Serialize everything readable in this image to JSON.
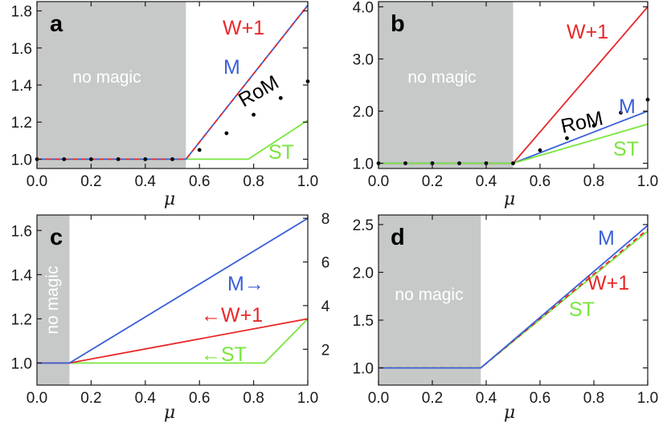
{
  "figure": {
    "xlabel": "μ",
    "region_label": "no magic"
  },
  "colors": {
    "W+1": "#e8292a",
    "M": "#3a5fd8",
    "ST": "#78e63c",
    "RoM": "#000000",
    "shade": "#c7c9c8",
    "axis": "#1a1a1a"
  },
  "chart_data": [
    {
      "panel": "a",
      "type": "line",
      "xlabel": "μ",
      "xlim": [
        0.0,
        1.0
      ],
      "ylim": [
        0.95,
        1.85
      ],
      "xticks": [
        0.0,
        0.2,
        0.4,
        0.6,
        0.8,
        1.0
      ],
      "xtick_labels": [
        "0.0",
        "0.2",
        "0.4",
        "0.6",
        "0.8",
        "1.0"
      ],
      "yticks": [
        1.0,
        1.2,
        1.4,
        1.6,
        1.8
      ],
      "ytick_labels": [
        "1.0",
        "1.2",
        "1.4",
        "1.6",
        "1.8"
      ],
      "shaded_region": {
        "x": [
          0.0,
          0.55
        ],
        "label": "no magic"
      },
      "series": [
        {
          "name": "ST",
          "label": "ST",
          "color": "#78e63c",
          "dash": false,
          "x": [
            0.0,
            0.78,
            1.0
          ],
          "y": [
            1.0,
            1.0,
            1.21
          ]
        },
        {
          "name": "M",
          "label": "M",
          "color": "#3a5fd8",
          "dash": false,
          "x": [
            0.0,
            0.55,
            1.0
          ],
          "y": [
            1.0,
            1.0,
            1.83
          ]
        },
        {
          "name": "W+1",
          "label": "W+1",
          "color": "#e8292a",
          "dash": true,
          "x": [
            0.0,
            0.55,
            1.0
          ],
          "y": [
            1.0,
            1.0,
            1.83
          ]
        }
      ],
      "points": {
        "name": "RoM",
        "label": "RoM",
        "x": [
          0.0,
          0.1,
          0.2,
          0.3,
          0.4,
          0.5,
          0.6,
          0.7,
          0.8,
          0.9,
          1.0
        ],
        "y": [
          1.0,
          1.0,
          1.0,
          1.0,
          1.0,
          1.0,
          1.05,
          1.14,
          1.24,
          1.33,
          1.42
        ]
      }
    },
    {
      "panel": "b",
      "type": "line",
      "xlabel": "μ",
      "xlim": [
        0.0,
        1.0
      ],
      "ylim": [
        0.9,
        4.1
      ],
      "xticks": [
        0.0,
        0.2,
        0.4,
        0.6,
        0.8,
        1.0
      ],
      "xtick_labels": [
        "0.0",
        "0.2",
        "0.4",
        "0.6",
        "0.8",
        "1.0"
      ],
      "yticks": [
        1.0,
        2.0,
        3.0,
        4.0
      ],
      "ytick_labels": [
        "1.0",
        "2.0",
        "3.0",
        "4.0"
      ],
      "shaded_region": {
        "x": [
          0.0,
          0.5
        ],
        "label": "no magic"
      },
      "series": [
        {
          "name": "W+1",
          "label": "W+1",
          "color": "#e8292a",
          "dash": false,
          "x": [
            0.0,
            0.5,
            1.0
          ],
          "y": [
            1.0,
            1.0,
            4.0
          ]
        },
        {
          "name": "M",
          "label": "M",
          "color": "#3a5fd8",
          "dash": false,
          "x": [
            0.0,
            0.5,
            1.0
          ],
          "y": [
            1.0,
            1.0,
            2.0
          ]
        },
        {
          "name": "ST",
          "label": "ST",
          "color": "#78e63c",
          "dash": false,
          "x": [
            0.0,
            0.5,
            1.0
          ],
          "y": [
            1.0,
            1.0,
            1.75
          ]
        }
      ],
      "points": {
        "name": "RoM",
        "label": "RoM",
        "x": [
          0.0,
          0.1,
          0.2,
          0.3,
          0.4,
          0.5,
          0.6,
          0.7,
          0.8,
          0.9,
          1.0
        ],
        "y": [
          1.0,
          1.0,
          1.0,
          1.0,
          1.0,
          1.0,
          1.25,
          1.48,
          1.72,
          1.97,
          2.22
        ]
      }
    },
    {
      "panel": "c",
      "type": "line",
      "xlabel": "μ",
      "xlim": [
        0.0,
        1.0
      ],
      "ylim": [
        0.9,
        1.67
      ],
      "xticks": [
        0.2,
        0.4,
        0.6,
        0.8,
        1.0
      ],
      "xtick_labels": [
        "0.2",
        "0.4",
        "0.6",
        "0.8",
        "1.0"
      ],
      "xtick_extra_label": {
        "value": 0.0,
        "label": "0.0"
      },
      "yticks": [
        1.0,
        1.2,
        1.4,
        1.6
      ],
      "ytick_labels": [
        "1.0",
        "1.2",
        "1.4",
        "1.6"
      ],
      "y2lim": [
        0.36,
        8.15
      ],
      "y2ticks": [
        2,
        4,
        6,
        8
      ],
      "y2tick_labels": [
        "2",
        "4",
        "6",
        "8"
      ],
      "shaded_region": {
        "x": [
          0.0,
          0.12
        ],
        "label": "no magic"
      },
      "series": [
        {
          "name": "ST",
          "label": "←ST",
          "axis": "left",
          "color": "#78e63c",
          "dash": false,
          "x": [
            0.0,
            0.12,
            0.84,
            1.0
          ],
          "y": [
            1.0,
            1.0,
            1.0,
            1.2
          ]
        },
        {
          "name": "W+1",
          "label": "←W+1",
          "axis": "left",
          "color": "#e8292a",
          "dash": false,
          "x": [
            0.0,
            0.12,
            1.0
          ],
          "y": [
            1.0,
            1.0,
            1.2
          ]
        },
        {
          "name": "M",
          "label": "M→",
          "axis": "right",
          "color": "#3a5fd8",
          "dash": false,
          "x": [
            0.0,
            0.12,
            1.0
          ],
          "y": [
            1.37,
            1.37,
            8.0
          ]
        }
      ]
    },
    {
      "panel": "d",
      "type": "line",
      "xlabel": "μ",
      "xlim": [
        0.0,
        1.0
      ],
      "ylim": [
        0.82,
        2.6
      ],
      "xticks": [
        0.0,
        0.2,
        0.4,
        0.6,
        0.8,
        1.0
      ],
      "xtick_labels": [
        "0.0",
        "0.2",
        "0.4",
        "0.6",
        "0.8",
        "1.0"
      ],
      "yticks": [
        1.0,
        1.5,
        2.0,
        2.5
      ],
      "ytick_labels": [
        "1.0",
        "1.5",
        "2.0",
        "2.5"
      ],
      "shaded_region": {
        "x": [
          0.0,
          0.38
        ],
        "label": "no magic"
      },
      "series": [
        {
          "name": "ST",
          "label": "ST",
          "color": "#78e63c",
          "dash": false,
          "x": [
            0.0,
            0.38,
            1.0
          ],
          "y": [
            1.0,
            1.0,
            2.43
          ]
        },
        {
          "name": "W+1",
          "label": "W+1",
          "color": "#e8292a",
          "dash": true,
          "x": [
            0.0,
            0.38,
            1.0
          ],
          "y": [
            1.0,
            1.0,
            2.45
          ]
        },
        {
          "name": "M",
          "label": "M",
          "color": "#3a5fd8",
          "dash": false,
          "x": [
            0.0,
            0.38,
            1.0
          ],
          "y": [
            1.0,
            1.0,
            2.49
          ]
        }
      ]
    }
  ]
}
